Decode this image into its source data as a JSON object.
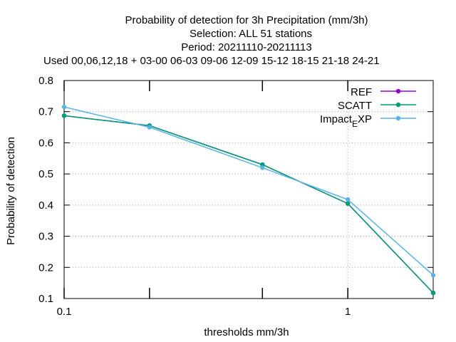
{
  "chart_data": {
    "type": "line",
    "title_lines": [
      "Probability of detection  for 3h Precipitation (mm/3h)",
      "Selection: ALL     51 stations",
      "Period: 20211110-20211113",
      "Used  00,06,12,18  + 03-00 06-03 09-06 12-09 15-12 18-15 21-18 24-21"
    ],
    "xlabel": "thresholds mm/3h",
    "ylabel": "Probability of detection",
    "x_scale": "log",
    "xlim": [
      0.1,
      2
    ],
    "ylim": [
      0.1,
      0.8
    ],
    "x_ticks": [
      {
        "value": 0.1,
        "label": "0.1"
      },
      {
        "value": 1,
        "label": "1"
      }
    ],
    "x_minor_ticks": [
      0.2,
      0.5
    ],
    "y_ticks": [
      {
        "value": 0.1,
        "label": "0.1"
      },
      {
        "value": 0.2,
        "label": "0.2"
      },
      {
        "value": 0.3,
        "label": "0.3"
      },
      {
        "value": 0.4,
        "label": "0.4"
      },
      {
        "value": 0.5,
        "label": "0.5"
      },
      {
        "value": 0.6,
        "label": "0.6"
      },
      {
        "value": 0.7,
        "label": "0.7"
      },
      {
        "value": 0.8,
        "label": "0.8"
      }
    ],
    "grid": true,
    "legend_position": "top-right",
    "x": [
      0.1,
      0.2,
      0.5,
      1,
      2
    ],
    "series": [
      {
        "name": "REF",
        "color": "#9400d3",
        "values": [
          0.687,
          0.655,
          0.53,
          0.405,
          0.118
        ]
      },
      {
        "name": "SCATT",
        "color": "#009e73",
        "values": [
          0.687,
          0.655,
          0.53,
          0.405,
          0.118
        ]
      },
      {
        "name_main": "Impact",
        "name_sub": "E",
        "name_tail": "XP",
        "color": "#56b4e9",
        "values": [
          0.715,
          0.65,
          0.52,
          0.418,
          0.175
        ]
      }
    ]
  }
}
